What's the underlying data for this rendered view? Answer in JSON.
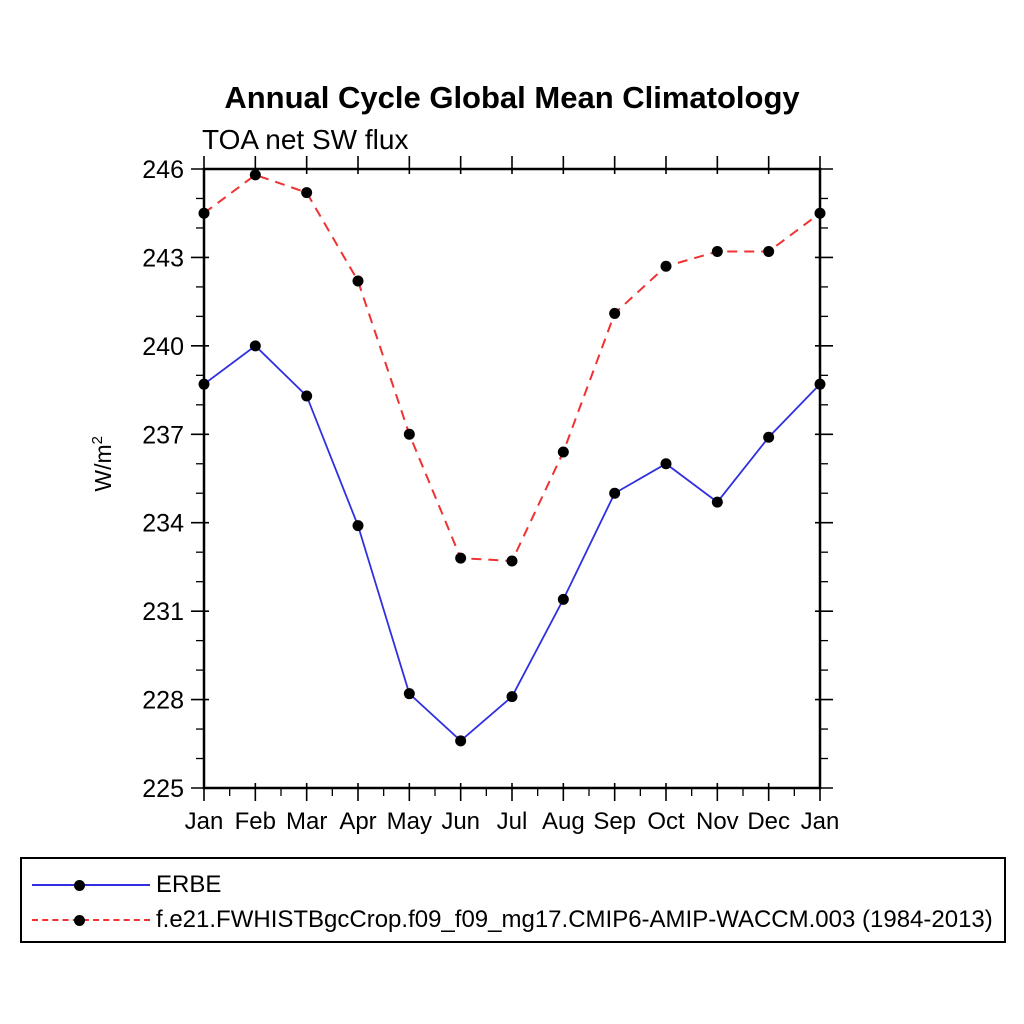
{
  "title": "Annual Cycle Global Mean Climatology",
  "subtitle": "TOA net SW flux",
  "y_axis": {
    "label": "W/m",
    "label_superscript": "2"
  },
  "chart_data": {
    "type": "line",
    "title": "Annual Cycle Global Mean Climatology",
    "subtitle": "TOA net SW flux",
    "ylabel": "W/m2",
    "x_categories": [
      "Jan",
      "Feb",
      "Mar",
      "Apr",
      "May",
      "Jun",
      "Jul",
      "Aug",
      "Sep",
      "Oct",
      "Nov",
      "Dec",
      "Jan"
    ],
    "ylim": [
      225,
      246
    ],
    "y_major_ticks": [
      225,
      228,
      231,
      234,
      237,
      240,
      243,
      246
    ],
    "y_minor_step": 1,
    "x_minor_ticks": "half-month",
    "grid": false,
    "legend_position": "bottom-outside-box",
    "marker_color": "#000000",
    "series": [
      {
        "name": "ERBE",
        "color": "#3030e0",
        "line_style": "solid",
        "marker": "filled-circle",
        "values": [
          238.7,
          240.0,
          238.3,
          233.9,
          228.2,
          226.6,
          228.1,
          231.4,
          235.0,
          236.0,
          234.7,
          236.9,
          238.7
        ]
      },
      {
        "name": "f.e21.FWHISTBgcCrop.f09_f09_mg17.CMIP6-AMIP-WACCM.003 (1984-2013)",
        "color": "#f03232",
        "line_style": "dashed",
        "marker": "filled-circle",
        "values": [
          244.5,
          245.8,
          245.2,
          242.2,
          237.0,
          232.8,
          232.7,
          236.4,
          241.1,
          242.7,
          243.2,
          243.2,
          244.5
        ]
      }
    ]
  }
}
